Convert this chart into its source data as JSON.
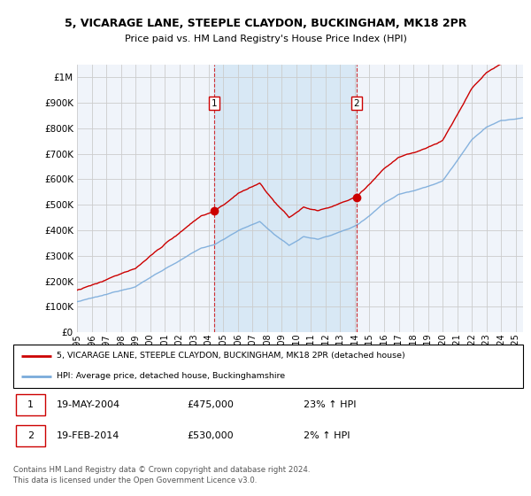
{
  "title": "5, VICARAGE LANE, STEEPLE CLAYDON, BUCKINGHAM, MK18 2PR",
  "subtitle": "Price paid vs. HM Land Registry's House Price Index (HPI)",
  "sale1_date": "19-MAY-2004",
  "sale1_price": 475000,
  "sale1_hpi": "23%",
  "sale2_date": "19-FEB-2014",
  "sale2_price": 530000,
  "sale2_hpi": "2%",
  "legend_line1": "5, VICARAGE LANE, STEEPLE CLAYDON, BUCKINGHAM, MK18 2PR (detached house)",
  "legend_line2": "HPI: Average price, detached house, Buckinghamshire",
  "footnote": "Contains HM Land Registry data © Crown copyright and database right 2024.\nThis data is licensed under the Open Government Licence v3.0.",
  "line_color_red": "#cc0000",
  "line_color_blue": "#7aabdb",
  "vline_color": "#cc0000",
  "background_color": "#ffffff",
  "plot_bg_color": "#f0f4fa",
  "highlight_color": "#d8e8f5",
  "grid_color": "#cccccc",
  "ylim_min": 0,
  "ylim_max": 1050000,
  "xstart": 1995.0,
  "xend": 2025.5,
  "sale1_t": 2004.38,
  "sale2_t": 2014.12
}
